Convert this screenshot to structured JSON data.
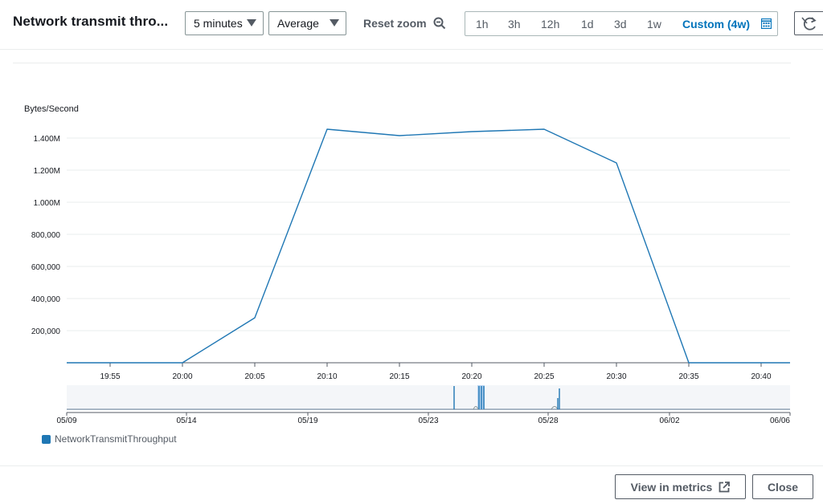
{
  "header": {
    "title": "Network transmit thro...",
    "period_select": {
      "value": "5 minutes"
    },
    "stat_select": {
      "value": "Average"
    },
    "reset_zoom_label": "Reset zoom",
    "time_ranges": [
      {
        "label": "1h",
        "active": false
      },
      {
        "label": "3h",
        "active": false
      },
      {
        "label": "12h",
        "active": false
      },
      {
        "label": "1d",
        "active": false
      },
      {
        "label": "3d",
        "active": false
      },
      {
        "label": "1w",
        "active": false
      },
      {
        "label": "Custom (4w)",
        "active": true
      }
    ],
    "icons": {
      "reset_zoom": "zoom-out-icon",
      "custom_range": "calendar-icon",
      "refresh": "refresh-icon",
      "view_metrics": "external-link-icon"
    }
  },
  "chart_data": {
    "type": "line",
    "ylabel": "Bytes/Second",
    "xlabel": "",
    "title": "",
    "x_ticks": [
      "19:55",
      "20:00",
      "20:05",
      "20:10",
      "20:15",
      "20:20",
      "20:25",
      "20:30",
      "20:35",
      "20:40"
    ],
    "y_ticks": [
      "200,000",
      "400,000",
      "600,000",
      "800,000",
      "1.000M",
      "1.200M",
      "1.400M"
    ],
    "y_tick_values": [
      200000,
      400000,
      600000,
      800000,
      1000000,
      1200000,
      1400000
    ],
    "ylim": [
      0,
      1500000
    ],
    "grid": true,
    "series": [
      {
        "name": "NetworkTransmitThroughput",
        "color": "#1f77b4",
        "x": [
          "19:52",
          "20:00",
          "20:05",
          "20:10",
          "20:15",
          "20:20",
          "20:25",
          "20:30",
          "20:35",
          "20:42"
        ],
        "y": [
          0,
          0,
          280000,
          1455000,
          1415000,
          1440000,
          1455000,
          1245000,
          0,
          0
        ]
      }
    ],
    "navigator": {
      "x_ticks": [
        "05/09",
        "05/14",
        "05/19",
        "05/23",
        "05/28",
        "06/02",
        "06/06"
      ]
    },
    "legend": {
      "placement": "bottom-left"
    }
  },
  "footer": {
    "view_metrics_label": "View in metrics",
    "close_label": "Close"
  }
}
